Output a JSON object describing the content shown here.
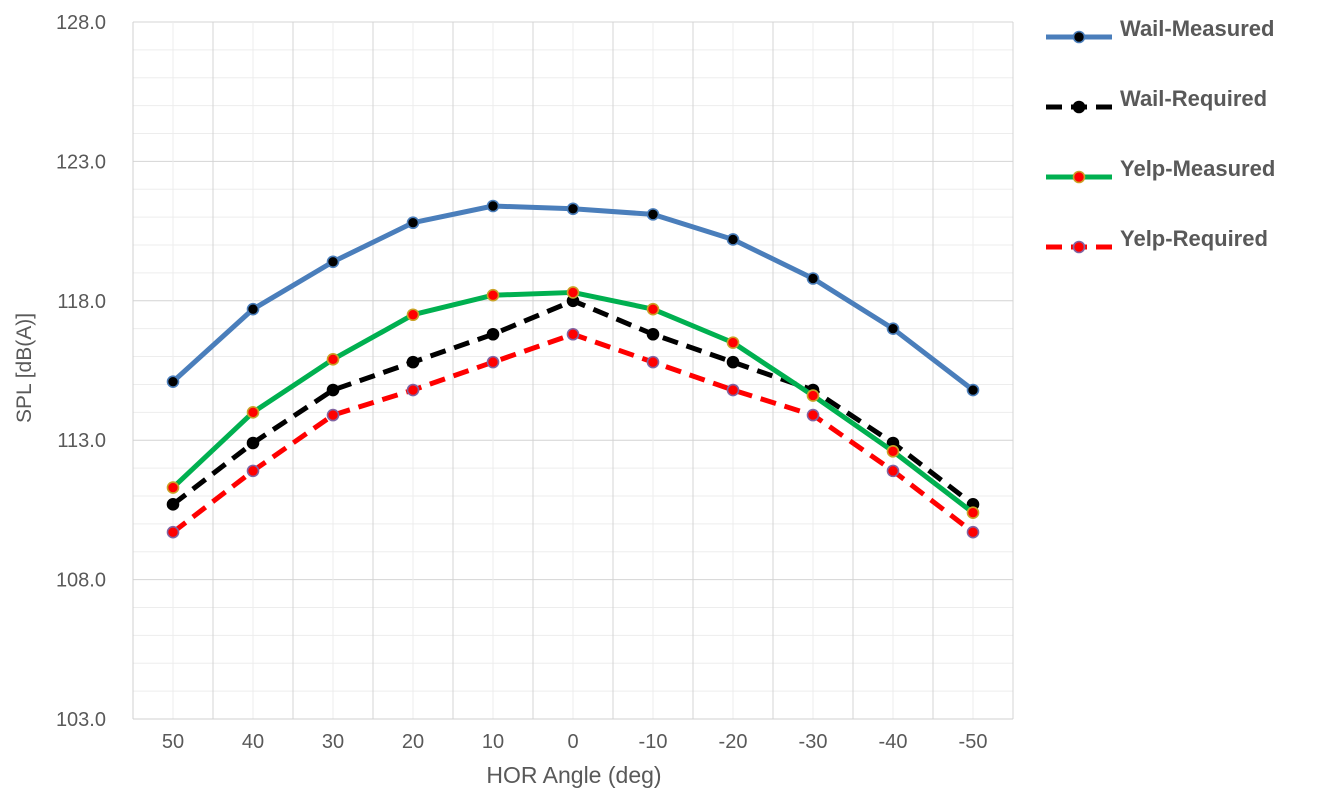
{
  "chart_data": {
    "type": "line",
    "title": "",
    "xlabel": "HOR Angle (deg)",
    "ylabel": "SPL [dB(A)]",
    "categories": [
      "50",
      "40",
      "30",
      "20",
      "10",
      "0",
      "-10",
      "-20",
      "-30",
      "-40",
      "-50"
    ],
    "ylim": [
      103.0,
      128.0
    ],
    "yticks": [
      "103.0",
      "108.0",
      "113.0",
      "118.0",
      "123.0",
      "128.0"
    ],
    "grid": true,
    "legend_position": "right",
    "series": [
      {
        "name": "Wail-Measured",
        "color": "#4a7ebb",
        "marker_fill": "#000000",
        "marker_stroke": "#4a7ebb",
        "dash": "solid",
        "values": [
          115.1,
          117.7,
          119.4,
          120.8,
          121.4,
          121.3,
          121.1,
          120.2,
          118.8,
          117.0,
          114.8
        ]
      },
      {
        "name": "Wail-Required",
        "color": "#000000",
        "marker_fill": "#000000",
        "marker_stroke": "#000000",
        "dash": "dashed",
        "values": [
          110.7,
          112.9,
          114.8,
          115.8,
          116.8,
          118.0,
          116.8,
          115.8,
          114.8,
          112.9,
          110.7
        ]
      },
      {
        "name": "Yelp-Measured",
        "color": "#00b050",
        "marker_fill": "#ff0000",
        "marker_stroke": "#c9a227",
        "dash": "solid",
        "values": [
          111.3,
          114.0,
          115.9,
          117.5,
          118.2,
          118.3,
          117.7,
          116.5,
          114.6,
          112.6,
          110.4
        ]
      },
      {
        "name": "Yelp-Required",
        "color": "#ff0000",
        "marker_fill": "#ff0000",
        "marker_stroke": "#8064a2",
        "dash": "dashed",
        "values": [
          109.7,
          111.9,
          113.9,
          114.8,
          115.8,
          116.8,
          115.8,
          114.8,
          113.9,
          111.9,
          109.7
        ]
      }
    ]
  }
}
